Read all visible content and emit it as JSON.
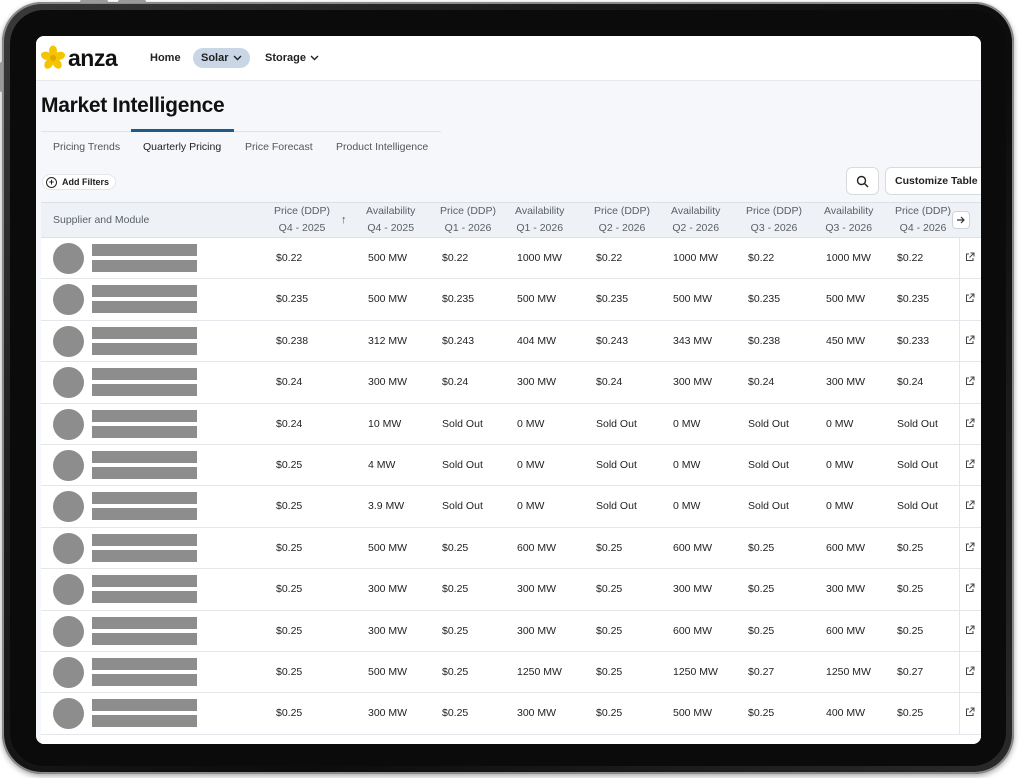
{
  "app": {
    "logo_text": "anza",
    "brand_color": "#f5c400"
  },
  "nav": {
    "items": [
      {
        "label": "Home",
        "has_dropdown": false,
        "active": false
      },
      {
        "label": "Solar",
        "has_dropdown": true,
        "active": true
      },
      {
        "label": "Storage",
        "has_dropdown": true,
        "active": false
      }
    ]
  },
  "page": {
    "title": "Market Intelligence"
  },
  "tabs": [
    {
      "label": "Pricing Trends",
      "active": false
    },
    {
      "label": "Quarterly Pricing",
      "active": true
    },
    {
      "label": "Price Forecast",
      "active": false
    },
    {
      "label": "Product Intelligence",
      "active": false
    }
  ],
  "toolbar": {
    "add_filters_label": "Add Filters",
    "search_icon": "search-icon",
    "customize_label": "Customize Table"
  },
  "table": {
    "first_column_header": "Supplier and Module",
    "columns": [
      {
        "line1": "Price (DDP)",
        "line2": "Q4 - 2025"
      },
      {
        "line1": "Availability",
        "line2": "Q4 - 2025"
      },
      {
        "line1": "Price (DDP)",
        "line2": "Q1 - 2026"
      },
      {
        "line1": "Availability",
        "line2": "Q1 - 2026"
      },
      {
        "line1": "Price (DDP)",
        "line2": "Q2 - 2026"
      },
      {
        "line1": "Availability",
        "line2": "Q2 - 2026"
      },
      {
        "line1": "Price (DDP)",
        "line2": "Q3 - 2026"
      },
      {
        "line1": "Availability",
        "line2": "Q3 - 2026"
      },
      {
        "line1": "Price (DDP)",
        "line2": "Q4 - 2026"
      }
    ],
    "sort_icon": "arrow-up-icon",
    "rows": [
      [
        "$0.22",
        "500 MW",
        "$0.22",
        "1000 MW",
        "$0.22",
        "1000 MW",
        "$0.22",
        "1000 MW",
        "$0.22"
      ],
      [
        "$0.235",
        "500 MW",
        "$0.235",
        "500 MW",
        "$0.235",
        "500 MW",
        "$0.235",
        "500 MW",
        "$0.235"
      ],
      [
        "$0.238",
        "312 MW",
        "$0.243",
        "404 MW",
        "$0.243",
        "343 MW",
        "$0.238",
        "450 MW",
        "$0.233"
      ],
      [
        "$0.24",
        "300 MW",
        "$0.24",
        "300 MW",
        "$0.24",
        "300 MW",
        "$0.24",
        "300 MW",
        "$0.24"
      ],
      [
        "$0.24",
        "10 MW",
        "Sold Out",
        "0 MW",
        "Sold Out",
        "0 MW",
        "Sold Out",
        "0 MW",
        "Sold Out"
      ],
      [
        "$0.25",
        "4 MW",
        "Sold Out",
        "0 MW",
        "Sold Out",
        "0 MW",
        "Sold Out",
        "0 MW",
        "Sold Out"
      ],
      [
        "$0.25",
        "3.9 MW",
        "Sold Out",
        "0 MW",
        "Sold Out",
        "0 MW",
        "Sold Out",
        "0 MW",
        "Sold Out"
      ],
      [
        "$0.25",
        "500 MW",
        "$0.25",
        "600 MW",
        "$0.25",
        "600 MW",
        "$0.25",
        "600 MW",
        "$0.25"
      ],
      [
        "$0.25",
        "300 MW",
        "$0.25",
        "300 MW",
        "$0.25",
        "300 MW",
        "$0.25",
        "300 MW",
        "$0.25"
      ],
      [
        "$0.25",
        "300 MW",
        "$0.25",
        "300 MW",
        "$0.25",
        "600 MW",
        "$0.25",
        "600 MW",
        "$0.25"
      ],
      [
        "$0.25",
        "500 MW",
        "$0.25",
        "1250 MW",
        "$0.25",
        "1250 MW",
        "$0.27",
        "1250 MW",
        "$0.27"
      ],
      [
        "$0.25",
        "300 MW",
        "$0.25",
        "300 MW",
        "$0.25",
        "500 MW",
        "$0.25",
        "400 MW",
        "$0.25"
      ]
    ]
  }
}
